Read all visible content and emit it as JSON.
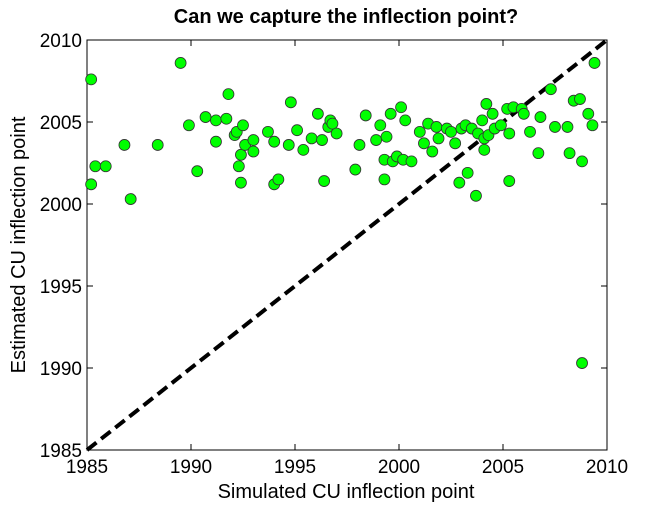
{
  "chart_data": {
    "type": "scatter",
    "title": "Can we capture the inflection point?",
    "xlabel": "Simulated CU inflection point",
    "ylabel": "Estimated CU inflection point",
    "xlim": [
      1985,
      2010
    ],
    "ylim": [
      1985,
      2010
    ],
    "xticks": [
      "1985",
      "1990",
      "1995",
      "2000",
      "2005",
      "2010"
    ],
    "yticks": [
      "1985",
      "1990",
      "1995",
      "2000",
      "2005",
      "2010"
    ],
    "grid": false,
    "legend": "none",
    "marker_color": "#00ff00",
    "marker_edge": "#333333",
    "reference_line": {
      "style": "dashed",
      "color": "#000000",
      "from": [
        1985,
        1985
      ],
      "to": [
        2010,
        2010
      ]
    },
    "points": [
      [
        1985.2,
        2007.6
      ],
      [
        1985.2,
        2001.2
      ],
      [
        1985.4,
        2002.3
      ],
      [
        1985.9,
        2002.3
      ],
      [
        1986.8,
        2003.6
      ],
      [
        1987.1,
        2000.3
      ],
      [
        1988.4,
        2003.6
      ],
      [
        1989.5,
        2008.6
      ],
      [
        1989.9,
        2004.8
      ],
      [
        1990.3,
        2002.0
      ],
      [
        1990.7,
        2005.3
      ],
      [
        1991.2,
        2003.8
      ],
      [
        1991.2,
        2005.1
      ],
      [
        1991.7,
        2005.2
      ],
      [
        1991.8,
        2006.7
      ],
      [
        1992.1,
        2004.2
      ],
      [
        1992.2,
        2004.4
      ],
      [
        1992.3,
        2002.3
      ],
      [
        1992.4,
        2001.3
      ],
      [
        1992.4,
        2003.0
      ],
      [
        1992.5,
        2004.8
      ],
      [
        1992.6,
        2003.6
      ],
      [
        1993.0,
        2003.9
      ],
      [
        1993.0,
        2003.2
      ],
      [
        1993.7,
        2004.4
      ],
      [
        1994.0,
        2003.8
      ],
      [
        1994.0,
        2001.2
      ],
      [
        1994.2,
        2001.5
      ],
      [
        1994.7,
        2003.6
      ],
      [
        1994.8,
        2006.2
      ],
      [
        1995.1,
        2004.5
      ],
      [
        1995.4,
        2003.3
      ],
      [
        1995.8,
        2004.0
      ],
      [
        1996.1,
        2005.5
      ],
      [
        1996.3,
        2003.9
      ],
      [
        1996.4,
        2001.4
      ],
      [
        1996.6,
        2004.7
      ],
      [
        1996.7,
        2005.1
      ],
      [
        1996.8,
        2004.9
      ],
      [
        1997.0,
        2004.3
      ],
      [
        1997.9,
        2002.1
      ],
      [
        1998.1,
        2003.6
      ],
      [
        1998.4,
        2005.4
      ],
      [
        1998.9,
        2003.9
      ],
      [
        1999.1,
        2004.8
      ],
      [
        1999.3,
        2002.7
      ],
      [
        1999.3,
        2001.5
      ],
      [
        1999.4,
        2004.1
      ],
      [
        1999.6,
        2005.5
      ],
      [
        1999.7,
        2002.6
      ],
      [
        1999.9,
        2002.9
      ],
      [
        2000.1,
        2005.9
      ],
      [
        2000.2,
        2002.7
      ],
      [
        2000.3,
        2005.1
      ],
      [
        2000.6,
        2002.6
      ],
      [
        2001.0,
        2004.4
      ],
      [
        2001.2,
        2003.7
      ],
      [
        2001.4,
        2004.9
      ],
      [
        2001.6,
        2003.2
      ],
      [
        2001.8,
        2004.7
      ],
      [
        2001.9,
        2004.0
      ],
      [
        2002.3,
        2004.6
      ],
      [
        2002.5,
        2004.4
      ],
      [
        2002.7,
        2003.7
      ],
      [
        2002.9,
        2001.3
      ],
      [
        2003.0,
        2004.6
      ],
      [
        2003.2,
        2004.8
      ],
      [
        2003.3,
        2001.9
      ],
      [
        2003.5,
        2004.6
      ],
      [
        2003.7,
        2000.5
      ],
      [
        2003.8,
        2004.3
      ],
      [
        2004.0,
        2005.1
      ],
      [
        2004.1,
        2004.0
      ],
      [
        2004.1,
        2003.3
      ],
      [
        2004.2,
        2006.1
      ],
      [
        2004.3,
        2004.2
      ],
      [
        2004.5,
        2005.5
      ],
      [
        2004.6,
        2004.6
      ],
      [
        2004.9,
        2004.8
      ],
      [
        2005.2,
        2005.8
      ],
      [
        2005.3,
        2001.4
      ],
      [
        2005.3,
        2004.3
      ],
      [
        2005.5,
        2005.9
      ],
      [
        2005.9,
        2005.8
      ],
      [
        2006.0,
        2005.5
      ],
      [
        2006.3,
        2004.4
      ],
      [
        2006.7,
        2003.1
      ],
      [
        2006.8,
        2005.3
      ],
      [
        2007.3,
        2007.0
      ],
      [
        2007.5,
        2004.7
      ],
      [
        2008.1,
        2004.7
      ],
      [
        2008.2,
        2003.1
      ],
      [
        2008.4,
        2006.3
      ],
      [
        2008.7,
        2006.4
      ],
      [
        2008.8,
        2002.6
      ],
      [
        2008.8,
        1990.3
      ],
      [
        2009.1,
        2005.5
      ],
      [
        2009.3,
        2004.8
      ],
      [
        2009.4,
        2008.6
      ]
    ]
  }
}
